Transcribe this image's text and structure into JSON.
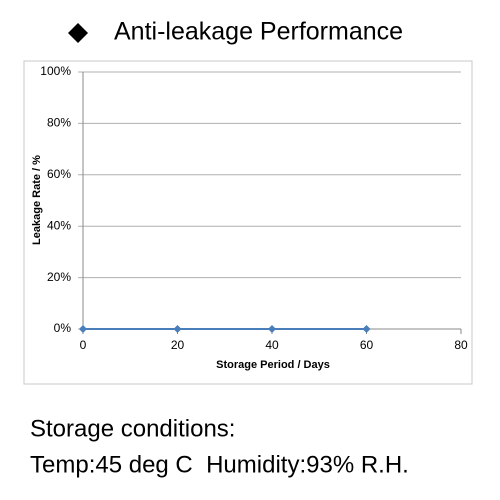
{
  "chart_data": {
    "type": "line",
    "title": "Anti-leakage Performance",
    "x_label": "Storage Period / Days",
    "y_label": "Leakage Rate / %",
    "x": [
      0,
      20,
      40,
      60
    ],
    "values": [
      0,
      0,
      0,
      0
    ],
    "color": "#4a7ebb",
    "xlim": [
      0,
      80
    ],
    "xticks": [
      0,
      20,
      40,
      60,
      80
    ],
    "ylim": [
      0,
      100
    ],
    "yticks": [
      {
        "value": 0,
        "label": "0%"
      },
      {
        "value": 20,
        "label": "20%"
      },
      {
        "value": 40,
        "label": "40%"
      },
      {
        "value": 60,
        "label": "60%"
      },
      {
        "value": 80,
        "label": "80%"
      },
      {
        "value": 100,
        "label": "100%"
      }
    ],
    "grid": true
  },
  "footer": {
    "lines": [
      "Storage conditions:",
      "Temp:45 deg C  Humidity:93% R.H."
    ]
  }
}
